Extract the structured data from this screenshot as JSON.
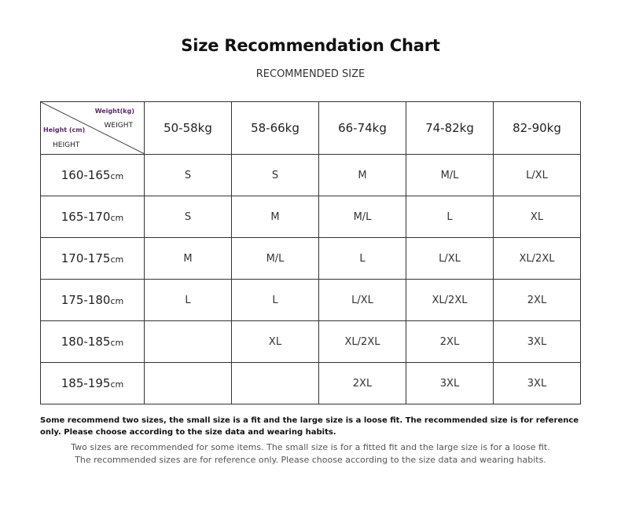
{
  "title": "Size Recommendation Chart",
  "subtitle": "RECOMMENDED SIZE",
  "corner": {
    "weight_label": "Weight(kg)",
    "weight_en": "WEIGHT",
    "height_label": "Height (cm)",
    "height_en": "HEIGHT"
  },
  "weights": [
    "50-58kg",
    "58-66kg",
    "66-74kg",
    "74-82kg",
    "82-90kg"
  ],
  "height_unit": "cm",
  "rows": [
    {
      "height": "160-165",
      "sizes": [
        "S",
        "S",
        "M",
        "M/L",
        "L/XL"
      ]
    },
    {
      "height": "165-170",
      "sizes": [
        "S",
        "M",
        "M/L",
        "L",
        "XL"
      ]
    },
    {
      "height": "170-175",
      "sizes": [
        "M",
        "M/L",
        "L",
        "L/XL",
        "XL/2XL"
      ]
    },
    {
      "height": "175-180",
      "sizes": [
        "L",
        "L",
        "L/XL",
        "XL/2XL",
        "2XL"
      ]
    },
    {
      "height": "180-185",
      "sizes": [
        "",
        "XL",
        "XL/2XL",
        "2XL",
        "3XL"
      ]
    },
    {
      "height": "185-195",
      "sizes": [
        "",
        "",
        "2XL",
        "3XL",
        "3XL"
      ]
    }
  ],
  "note_bold": "Some recommend two sizes, the small size is a fit and the large size is a loose fit. The recommended size is for reference only. Please choose according to the size data and wearing habits.",
  "note_line1": "Two sizes are recommended for some items. The small size is for a fitted fit and the large size is for a loose fit.",
  "note_line2": "The recommended sizes are for reference only. Please choose according to the size data and wearing habits."
}
